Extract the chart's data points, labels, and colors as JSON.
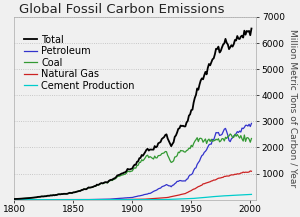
{
  "title": "Global Fossil Carbon Emissions",
  "ylabel": "Million Metric Tons of Carbon / Year",
  "xlim": [
    1800,
    2005
  ],
  "ylim": [
    0,
    7000
  ],
  "yticks": [
    1000,
    2000,
    3000,
    4000,
    5000,
    6000,
    7000
  ],
  "xticks": [
    1800,
    1850,
    1900,
    1950,
    2000
  ],
  "colors": {
    "Total": "#000000",
    "Petroleum": "#3333cc",
    "Coal": "#339933",
    "Natural Gas": "#cc2222",
    "Cement Production": "#00cccc"
  },
  "background_color": "#f0f0f0",
  "grid_color": "#bbbbbb",
  "title_fontsize": 9.5,
  "label_fontsize": 6.5,
  "tick_fontsize": 6.5,
  "legend_fontsize": 7
}
